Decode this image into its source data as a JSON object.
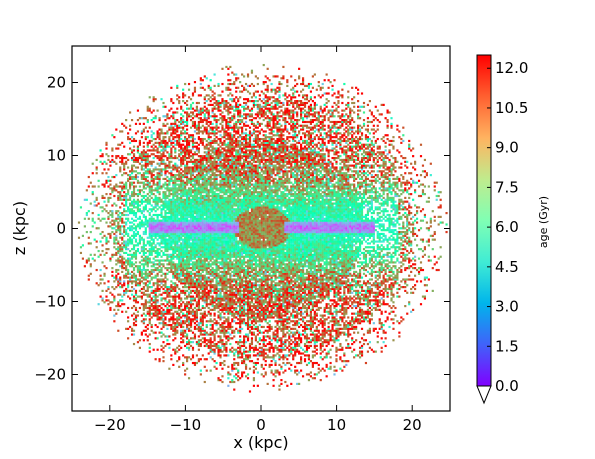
{
  "chart_data": {
    "type": "heatmap",
    "title": "",
    "xlabel": "x (kpc)",
    "ylabel": "z (kpc)",
    "xlim": [
      -25,
      25
    ],
    "ylim": [
      -25,
      25
    ],
    "xticks": [
      -20,
      -10,
      0,
      10,
      20
    ],
    "xtick_labels": [
      "−20",
      "−10",
      "0",
      "10",
      "20"
    ],
    "yticks": [
      -20,
      -10,
      0,
      10,
      20
    ],
    "ytick_labels": [
      "−20",
      "−10",
      "0",
      "10",
      "20"
    ],
    "grid": false,
    "colormap": "rainbow",
    "colorbar": {
      "label": "age (Gyr)",
      "min": 0.0,
      "max": 12.5,
      "ticks": [
        0.0,
        1.5,
        3.0,
        4.5,
        6.0,
        7.5,
        9.0,
        10.5,
        12.0
      ],
      "tick_labels": [
        "0.0",
        "1.5",
        "3.0",
        "4.5",
        "6.0",
        "7.5",
        "9.0",
        "10.5",
        "12.0"
      ],
      "extend": "min"
    },
    "description_regions": [
      {
        "region": "outer halo, |x| 10-25 kpc and |z| 5-23 kpc",
        "age_gyr": 11.5
      },
      {
        "region": "bulge centre, |x| < 4 kpc and |z| < 3 kpc",
        "age_gyr": 10.0
      },
      {
        "region": "thin disc plane, |x| 5-14 kpc and |z| < 1.5 kpc",
        "age_gyr": 1.5
      },
      {
        "region": "thick disc envelope, |z| 2-6 kpc",
        "age_gyr": 6.5
      }
    ]
  }
}
